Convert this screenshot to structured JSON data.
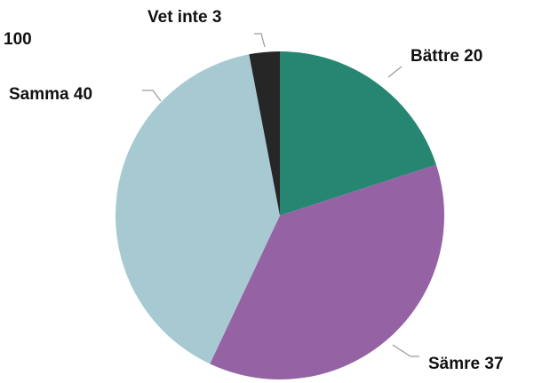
{
  "total_label": "100",
  "chart_data": {
    "type": "pie",
    "title": "",
    "total": 100,
    "start_angle_deg": 0,
    "direction": "clockwise",
    "slices": [
      {
        "name": "Bättre",
        "value": 20,
        "label": "Bättre 20",
        "color": "#268672"
      },
      {
        "name": "Sämre",
        "value": 37,
        "label": "Sämre 37",
        "color": "#9563a4"
      },
      {
        "name": "Samma",
        "value": 40,
        "label": "Samma 40",
        "color": "#a7cad2"
      },
      {
        "name": "Vet inte",
        "value": 3,
        "label": "Vet inte 3",
        "color": "#262626"
      }
    ]
  }
}
